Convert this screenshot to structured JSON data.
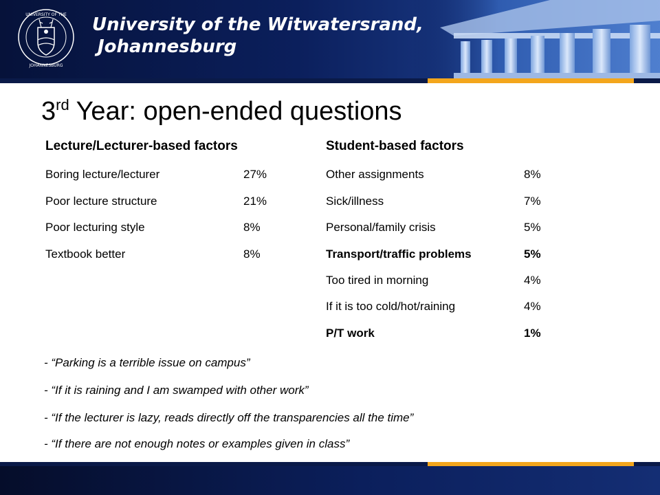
{
  "header": {
    "university_line1": "University of the Witwatersrand,",
    "university_line2": "Johannesburg",
    "crest_text_top": "UNIVERSITY OF THE WITWATERSRAND",
    "crest_text_bottom": "JOHANNESBURG"
  },
  "slide": {
    "title_main": "3",
    "title_sup": "rd",
    "title_rest": " Year: open-ended questions"
  },
  "lecture_factors": {
    "heading": "Lecture/Lecturer-based factors",
    "rows": [
      {
        "label": "Boring lecture/lecturer",
        "value": "27%"
      },
      {
        "label": "Poor lecture structure",
        "value": "21%"
      },
      {
        "label": "Poor lecturing style",
        "value": "8%"
      },
      {
        "label": "Textbook better",
        "value": "8%"
      }
    ]
  },
  "student_factors": {
    "heading": "Student-based factors",
    "rows": [
      {
        "label": "Other assignments",
        "value": "8%",
        "bold": false
      },
      {
        "label": "Sick/illness",
        "value": "7%",
        "bold": false
      },
      {
        "label": "Personal/family crisis",
        "value": "5%",
        "bold": false
      },
      {
        "label": "Transport/traffic problems",
        "value": "5%",
        "bold": true
      },
      {
        "label": "Too tired in morning",
        "value": "4%",
        "bold": false
      },
      {
        "label": "If it is too cold/hot/raining",
        "value": "4%",
        "bold": false
      },
      {
        "label": "P/T work",
        "value": "1%",
        "bold": true
      }
    ]
  },
  "quotes": [
    "- “Parking is a terrible issue on campus”",
    "- “If it is raining and I am swamped with other work”",
    "- “If the lecturer is lazy, reads directly off the transparencies all the time”",
    "- “If there are not enough notes or examples given in class”"
  ],
  "colors": {
    "banner_dark": "#0b1f5c",
    "accent_gold": "#f3a61c"
  }
}
